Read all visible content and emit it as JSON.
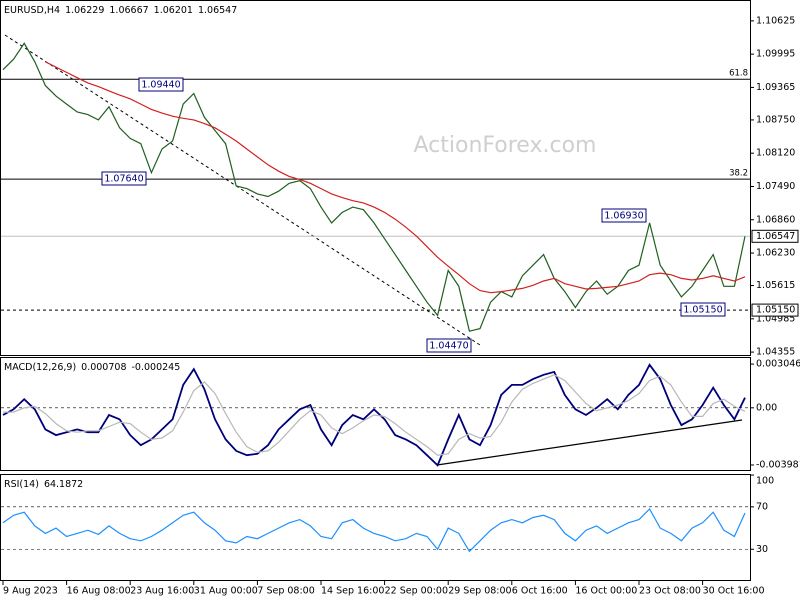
{
  "chart_data": [
    {
      "type": "line",
      "title": "EURUSD,H4",
      "header_values": [
        1.06229,
        1.06667,
        1.06201,
        1.06547
      ],
      "watermark": "ActionForex.com",
      "categories": [
        "9 Aug 2023",
        null,
        null,
        null,
        null,
        null,
        "16 Aug 08:00",
        null,
        null,
        null,
        null,
        null,
        "23 Aug 16:00",
        null,
        null,
        null,
        null,
        null,
        "31 Aug 00:00",
        null,
        null,
        null,
        null,
        null,
        "7 Sep 08:00",
        null,
        null,
        null,
        null,
        null,
        "14 Sep 16:00",
        null,
        null,
        null,
        null,
        null,
        "22 Sep 00:00",
        null,
        null,
        null,
        null,
        null,
        "29 Sep 08:00",
        null,
        null,
        null,
        null,
        null,
        "6 Oct 16:00",
        null,
        null,
        null,
        null,
        null,
        "16 Oct 00:00",
        null,
        null,
        null,
        null,
        null,
        "23 Oct 08:00",
        null,
        null,
        null,
        null,
        null,
        "30 Oct 16:00",
        null,
        null,
        null,
        null
      ],
      "series": [
        {
          "color": "#1f5f1f",
          "values": [
            1.097,
            1.099,
            1.102,
            1.0985,
            1.094,
            1.092,
            1.0905,
            1.089,
            1.0885,
            1.0875,
            1.09,
            1.086,
            1.084,
            1.083,
            1.0775,
            1.082,
            1.0835,
            1.0905,
            1.0925,
            1.088,
            1.0855,
            1.083,
            1.075,
            1.0745,
            1.0735,
            1.073,
            1.074,
            1.0755,
            1.076,
            1.0745,
            1.071,
            1.068,
            1.07,
            1.071,
            1.0705,
            1.068,
            1.065,
            1.062,
            1.059,
            1.056,
            1.053,
            1.0505,
            1.059,
            1.056,
            1.0475,
            1.048,
            1.053,
            1.055,
            1.054,
            1.058,
            1.06,
            1.062,
            1.0575,
            1.055,
            1.052,
            1.055,
            1.057,
            1.0545,
            1.056,
            1.059,
            1.06,
            1.068,
            1.06,
            1.057,
            1.054,
            1.056,
            1.059,
            1.062,
            1.056,
            1.056,
            1.06547
          ]
        },
        {
          "color": "#d42020",
          "values": [
            null,
            null,
            null,
            null,
            1.0985,
            1.0975,
            1.0965,
            1.0955,
            1.0945,
            1.0938,
            1.093,
            1.0922,
            1.0915,
            1.0905,
            1.0895,
            1.0888,
            1.0882,
            1.0878,
            1.0875,
            1.0868,
            1.086,
            1.0848,
            1.0835,
            1.082,
            1.0805,
            1.079,
            1.0778,
            1.0768,
            1.0762,
            1.0755,
            1.0745,
            1.0735,
            1.0728,
            1.0722,
            1.0718,
            1.071,
            1.07,
            1.0687,
            1.0672,
            1.0655,
            1.0635,
            1.0615,
            1.0598,
            1.0582,
            1.0565,
            1.0552,
            1.0548,
            1.055,
            1.0553,
            1.0556,
            1.0562,
            1.057,
            1.0575,
            1.0565,
            1.056,
            1.0555,
            1.0556,
            1.0558,
            1.056,
            1.0565,
            1.057,
            1.0582,
            1.0585,
            1.0582,
            1.0575,
            1.0572,
            1.0575,
            1.058,
            1.0575,
            1.057,
            1.0578
          ]
        }
      ],
      "ylim": [
        1.043,
        1.1102
      ],
      "yticks": [
        1.10625,
        1.09995,
        1.09365,
        {
          "value": 1.0875,
          "label": "1.08750"
        },
        {
          "value": 1.0812,
          "label": "1.08120"
        },
        {
          "value": 1.0749,
          "label": "1.07490"
        },
        {
          "value": 1.0686,
          "label": "1.06860"
        },
        {
          "value": 1.0623,
          "label": "1.06230"
        },
        1.05615,
        1.04985,
        1.04355
      ],
      "levels": [
        {
          "value": 1.0952,
          "label": "61.8"
        },
        {
          "value": 1.0763,
          "label": "38.2"
        },
        {
          "value": 1.06547,
          "tag": "1.06547",
          "color": "#c0c0c0"
        },
        {
          "value": 1.0515,
          "tag": "1.05150",
          "dashed": true
        }
      ],
      "annotations": [
        "1.09440",
        "1.07640",
        "1.06930",
        "1.05150",
        "1.04470"
      ]
    },
    {
      "type": "line",
      "title": "MACD(12,26,9)",
      "header_values": [
        0.000708,
        -0.000245
      ],
      "series": [
        {
          "color": "#00007a",
          "values": [
            -0.0005,
            -0.0001,
            0.0006,
            -0.0001,
            -0.0015,
            -0.0019,
            -0.0017,
            -0.0015,
            -0.0017,
            -0.0017,
            -0.0005,
            -0.0008,
            -0.0019,
            -0.0026,
            -0.0022,
            -0.0015,
            -0.0008,
            0.0016,
            0.0027,
            0.0013,
            -0.0008,
            -0.0022,
            -0.003,
            -0.0033,
            -0.0032,
            -0.0026,
            -0.0015,
            -0.0008,
            -0.0001,
            0.0002,
            -0.0015,
            -0.0026,
            -0.0012,
            -0.0005,
            -0.0008,
            -0.0001,
            -0.0008,
            -0.0019,
            -0.0022,
            -0.0026,
            -0.0033,
            -0.004,
            -0.0022,
            -0.0005,
            -0.0022,
            -0.0026,
            -0.0012,
            0.0009,
            0.0016,
            0.0016,
            0.002,
            0.0023,
            0.0025,
            0.0009,
            -0.0001,
            -0.0005,
            0,
            0.0006,
            -0.0001,
            0.0009,
            0.0016,
            0.003,
            0.002,
            0.0002,
            -0.0012,
            -0.0008,
            0.0002,
            0.0014,
            0.0002,
            -0.0008,
            0.000708
          ]
        },
        {
          "color": "#b8b8b8",
          "values": [
            -0.0003,
            -0.0003,
            0,
            0.0001,
            -0.0004,
            -0.0011,
            -0.0016,
            -0.0017,
            -0.0016,
            -0.0016,
            -0.0013,
            -0.001,
            -0.0011,
            -0.0017,
            -0.0022,
            -0.0021,
            -0.0016,
            -0.0003,
            0.0012,
            0.0018,
            0.001,
            -0.0004,
            -0.0017,
            -0.0027,
            -0.0031,
            -0.003,
            -0.0024,
            -0.0016,
            -0.0008,
            -0.0002,
            -0.0005,
            -0.0014,
            -0.0018,
            -0.0014,
            -0.0009,
            -0.0005,
            -0.0006,
            -0.0011,
            -0.0017,
            -0.0022,
            -0.0027,
            -0.0033,
            -0.0032,
            -0.0022,
            -0.0018,
            -0.0021,
            -0.002,
            -0.001,
            0.0004,
            0.0013,
            0.0017,
            0.002,
            0.0023,
            0.0019,
            0.0011,
            0.0003,
            -0.0002,
            0,
            0.0002,
            0.0005,
            0.001,
            0.0019,
            0.0022,
            0.0016,
            0.0004,
            -0.0006,
            -0.0006,
            0.0003,
            0.0006,
            0.0001,
            -0.000245
          ]
        }
      ],
      "ylim": [
        -0.00433,
        0.00354
      ],
      "yticks": [
        0.003046,
        {
          "value": 0,
          "label": "0.00"
        },
        -0.003981
      ],
      "levels": [
        {
          "value": 0,
          "dashed": true
        }
      ]
    },
    {
      "type": "line",
      "title": "RSI(14)",
      "header_values": [
        64.1872
      ],
      "series": [
        {
          "color": "#1e90ff",
          "values": [
            55,
            62,
            65,
            52,
            45,
            50,
            42,
            45,
            48,
            44,
            52,
            45,
            40,
            38,
            42,
            48,
            55,
            62,
            65,
            55,
            48,
            38,
            36,
            42,
            40,
            45,
            50,
            55,
            58,
            52,
            42,
            40,
            55,
            58,
            50,
            45,
            42,
            38,
            40,
            45,
            42,
            30,
            50,
            45,
            28,
            38,
            48,
            55,
            58,
            55,
            60,
            62,
            58,
            45,
            38,
            48,
            52,
            45,
            50,
            55,
            58,
            68,
            50,
            45,
            38,
            50,
            55,
            65,
            48,
            42,
            64.1872
          ]
        }
      ],
      "ylim": [
        1,
        101
      ],
      "yticks": [
        100,
        70,
        30
      ],
      "levels": [
        {
          "value": 70,
          "dashed": true
        },
        {
          "value": 30,
          "dashed": true
        }
      ]
    }
  ]
}
